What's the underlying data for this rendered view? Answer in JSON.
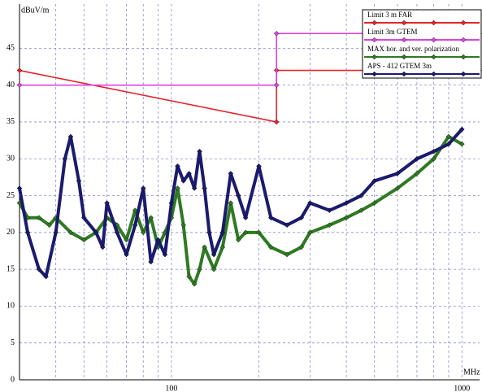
{
  "chart_data": {
    "type": "line",
    "y_label": "dBuV/m",
    "x_label": "MHz",
    "log_x": true,
    "grid": true,
    "legend": "upper right",
    "xlim": [
      30,
      1150
    ],
    "ylim": [
      0,
      51
    ],
    "xticks": [
      100,
      1000
    ],
    "xminor": [
      30,
      40,
      50,
      60,
      70,
      80,
      90,
      200,
      300,
      400,
      500,
      600,
      700,
      800,
      900
    ],
    "yticks": [
      0,
      5,
      10,
      15,
      20,
      25,
      30,
      35,
      40,
      45
    ],
    "series": [
      {
        "name": "Limit 3 m FAR",
        "color": "#e3262b",
        "x": [
          30,
          230,
          230,
          1150
        ],
        "values": [
          42,
          35,
          42,
          42
        ]
      },
      {
        "name": "Limit 3m GTEM",
        "color": "#dd44dd",
        "x": [
          30,
          230,
          230,
          1150
        ],
        "values": [
          40,
          40,
          47,
          47
        ]
      },
      {
        "name": "MAX  hor. and ver. polarization",
        "color": "#2f7a22",
        "x": [
          30,
          32,
          35,
          38,
          40,
          45,
          50,
          55,
          60,
          65,
          70,
          75,
          80,
          85,
          90,
          95,
          100,
          105,
          110,
          115,
          120,
          125,
          130,
          140,
          150,
          160,
          170,
          180,
          200,
          220,
          250,
          280,
          300,
          350,
          400,
          450,
          500,
          600,
          700,
          800,
          900,
          1000
        ],
        "values": [
          24,
          22,
          22,
          21,
          22,
          20,
          19,
          20,
          22,
          21,
          19,
          23,
          20,
          22,
          18,
          20,
          22,
          26,
          21,
          14,
          13,
          15,
          18,
          15,
          18,
          24,
          19,
          20,
          20,
          18,
          17,
          18,
          20,
          21,
          22,
          23,
          24,
          26,
          28,
          30,
          33,
          32
        ]
      },
      {
        "name": "APS - 412 GTEM  3m",
        "color": "#1b1b6e",
        "x": [
          30,
          32,
          35,
          37,
          40,
          43,
          45,
          48,
          50,
          55,
          58,
          60,
          65,
          70,
          75,
          80,
          85,
          90,
          95,
          100,
          105,
          110,
          115,
          120,
          125,
          130,
          135,
          140,
          150,
          160,
          170,
          180,
          200,
          220,
          250,
          280,
          300,
          350,
          400,
          450,
          500,
          600,
          700,
          800,
          900,
          1000
        ],
        "values": [
          26,
          20,
          15,
          14,
          20,
          30,
          33,
          27,
          22,
          20,
          18,
          24,
          20,
          17,
          21,
          26,
          16,
          19,
          17,
          24,
          29,
          27,
          28,
          26,
          31,
          26,
          20,
          17,
          20,
          28,
          25,
          22,
          29,
          22,
          21,
          22,
          24,
          23,
          24,
          25,
          27,
          28,
          30,
          31,
          32,
          34
        ]
      }
    ]
  }
}
